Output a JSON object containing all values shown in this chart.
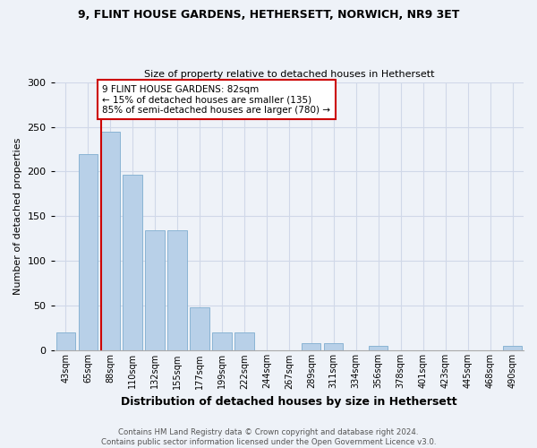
{
  "title": "9, FLINT HOUSE GARDENS, HETHERSETT, NORWICH, NR9 3ET",
  "subtitle": "Size of property relative to detached houses in Hethersett",
  "xlabel": "Distribution of detached houses by size in Hethersett",
  "ylabel": "Number of detached properties",
  "categories": [
    "43sqm",
    "65sqm",
    "88sqm",
    "110sqm",
    "132sqm",
    "155sqm",
    "177sqm",
    "199sqm",
    "222sqm",
    "244sqm",
    "267sqm",
    "289sqm",
    "311sqm",
    "334sqm",
    "356sqm",
    "378sqm",
    "401sqm",
    "423sqm",
    "445sqm",
    "468sqm",
    "490sqm"
  ],
  "values": [
    20,
    220,
    245,
    196,
    134,
    134,
    48,
    20,
    20,
    0,
    0,
    8,
    8,
    0,
    5,
    0,
    0,
    0,
    0,
    0,
    5
  ],
  "bar_color": "#b8d0e8",
  "bar_edge_color": "#8ab4d4",
  "grid_color": "#d0d8e8",
  "background_color": "#eef2f8",
  "vline_color": "#cc0000",
  "annotation_text": "9 FLINT HOUSE GARDENS: 82sqm\n← 15% of detached houses are smaller (135)\n85% of semi-detached houses are larger (780) →",
  "annotation_box_color": "#ffffff",
  "annotation_box_edge": "#cc0000",
  "footer": "Contains HM Land Registry data © Crown copyright and database right 2024.\nContains public sector information licensed under the Open Government Licence v3.0.",
  "ylim": [
    0,
    300
  ],
  "yticks": [
    0,
    50,
    100,
    150,
    200,
    250,
    300
  ],
  "title_fontsize": 9,
  "subtitle_fontsize": 8,
  "ylabel_fontsize": 8,
  "xlabel_fontsize": 9
}
